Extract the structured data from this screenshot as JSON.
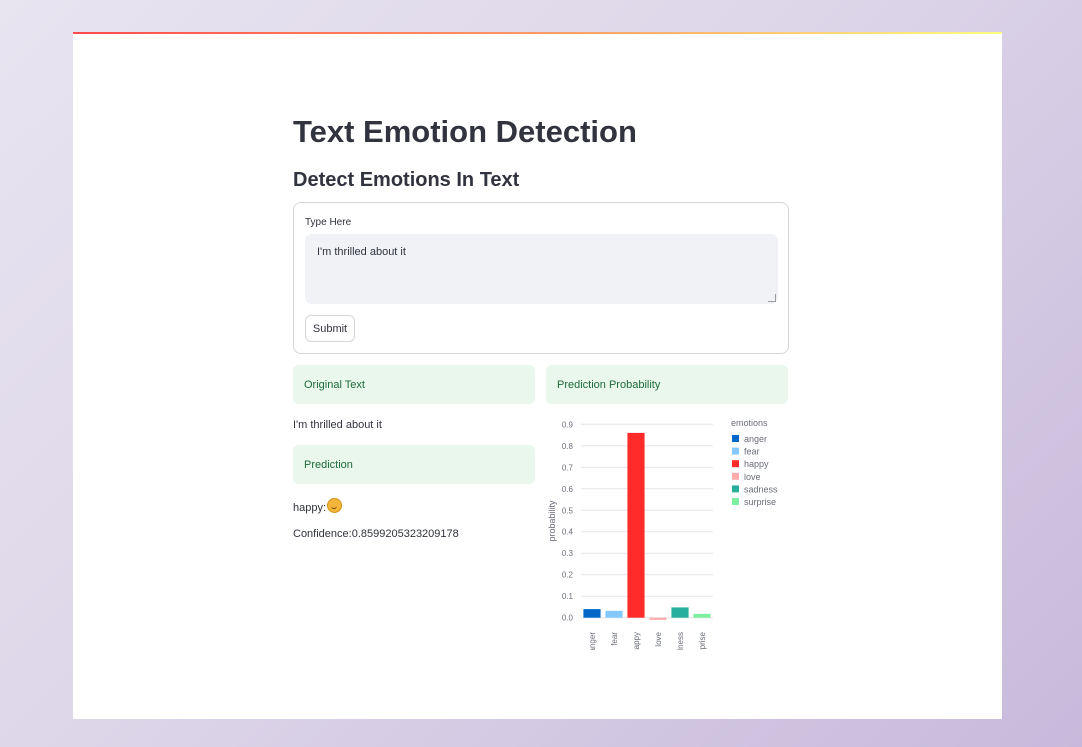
{
  "app": {
    "title": "Text Emotion Detection",
    "subtitle": "Detect Emotions In Text"
  },
  "form": {
    "label": "Type Here",
    "value": "I'm thrilled about it",
    "submit_label": "Submit"
  },
  "results": {
    "original_header": "Original Text",
    "original_text": "I'm thrilled about it",
    "prediction_header": "Prediction",
    "prediction_label": "happy:",
    "prediction_emoji": "hugging-face-emoji",
    "confidence_text": "Confidence:0.8599205323209178",
    "probability_header": "Prediction Probability"
  },
  "colors": {
    "accent_gradient": [
      "#ff4b4b",
      "#fffd80"
    ],
    "info_bg": "#e9f7ec",
    "info_text": "#1e6b3a"
  },
  "chart_data": {
    "type": "bar",
    "categories": [
      "anger",
      "fear",
      "happy",
      "love",
      "sadness",
      "surprise"
    ],
    "values": [
      0.04,
      0.032,
      0.86,
      -0.01,
      0.048,
      0.018
    ],
    "colors": [
      "#0068c9",
      "#83c9ff",
      "#ff2b2b",
      "#ffabab",
      "#29b09d",
      "#7defa1"
    ],
    "xlabel": "emotions",
    "ylabel": "probability",
    "yticks": [
      0.0,
      0.1,
      0.2,
      0.3,
      0.4,
      0.5,
      0.6,
      0.7,
      0.8,
      0.9
    ],
    "ytick_labels": [
      "0.0",
      "0.1",
      "0.2",
      "0.3",
      "0.4",
      "0.5",
      "0.6",
      "0.7",
      "0.8",
      "0.9"
    ],
    "ylim": [
      -0.02,
      0.92
    ],
    "legend_title": "emotions",
    "legend_position": "right",
    "grid": true
  }
}
